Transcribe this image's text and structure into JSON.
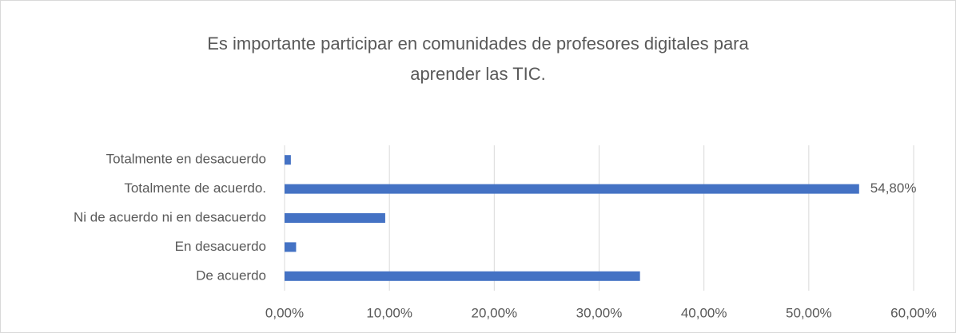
{
  "chart_data": {
    "type": "barh",
    "title": [
      "Es importante participar en comunidades de profesores digitales para",
      "aprender las TIC."
    ],
    "categories": [
      "Totalmente en desacuerdo",
      "Totalmente de acuerdo.",
      "Ni de acuerdo ni en desacuerdo",
      "En desacuerdo",
      "De acuerdo"
    ],
    "values": [
      0.6,
      54.8,
      9.6,
      1.1,
      33.9
    ],
    "value_labels": [
      null,
      "54,80%",
      null,
      null,
      null
    ],
    "color": "#4472c4",
    "xlim": [
      0,
      60
    ],
    "xticks": [
      {
        "value": 0,
        "label": "0,00%"
      },
      {
        "value": 10,
        "label": "10,00%"
      },
      {
        "value": 20,
        "label": "20,00%"
      },
      {
        "value": 30,
        "label": "30,00%"
      },
      {
        "value": 40,
        "label": "40,00%"
      },
      {
        "value": 50,
        "label": "50,00%"
      },
      {
        "value": 60,
        "label": "60,00%"
      }
    ],
    "grid": true
  }
}
